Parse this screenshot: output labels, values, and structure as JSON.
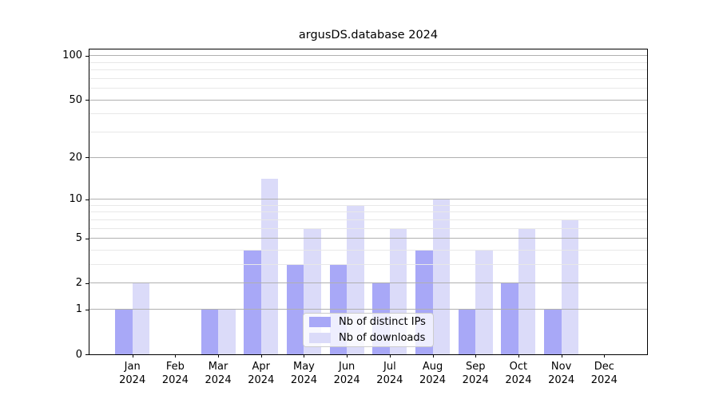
{
  "title": "argusDS.database 2024",
  "colors": {
    "distinct_ips_bar": "#a8a8f7",
    "downloads_bar": "#dbdbf9",
    "major_gridline": "#b0b0b0",
    "minor_gridline": "#e8e8e8",
    "axis_spine": "#000000",
    "legend_border": "#cccccc",
    "legend_background": "rgba(255,255,255,0.8)"
  },
  "chart_data": {
    "type": "bar",
    "title": "argusDS.database 2024",
    "months": [
      "Jan",
      "Feb",
      "Mar",
      "Apr",
      "May",
      "Jun",
      "Jul",
      "Aug",
      "Sep",
      "Oct",
      "Nov",
      "Dec"
    ],
    "year": "2024",
    "categories": [
      "Jan 2024",
      "Feb 2024",
      "Mar 2024",
      "Apr 2024",
      "May 2024",
      "Jun 2024",
      "Jul 2024",
      "Aug 2024",
      "Sep 2024",
      "Oct 2024",
      "Nov 2024",
      "Dec 2024"
    ],
    "series": [
      {
        "name": "Nb of distinct IPs",
        "color": "#a8a8f7",
        "values": [
          1,
          0,
          1,
          4,
          3,
          3,
          2,
          4,
          1,
          2,
          1,
          0
        ]
      },
      {
        "name": "Nb of downloads",
        "color": "#dbdbf9",
        "values": [
          2,
          0,
          1,
          14,
          6,
          9,
          6,
          10,
          4,
          6,
          7,
          0
        ]
      }
    ],
    "xlabel": "",
    "ylabel": "",
    "yscale": "log1p",
    "ylim": [
      0,
      110
    ],
    "y_major_ticks": [
      0,
      1,
      2,
      5,
      10,
      20,
      50,
      100
    ],
    "y_minor_gridlines": [
      3,
      4,
      6,
      7,
      8,
      9,
      30,
      40,
      60,
      70,
      80,
      90
    ],
    "grid": true,
    "gridlines_above_bars": true,
    "legend_position": "lower center inside"
  }
}
